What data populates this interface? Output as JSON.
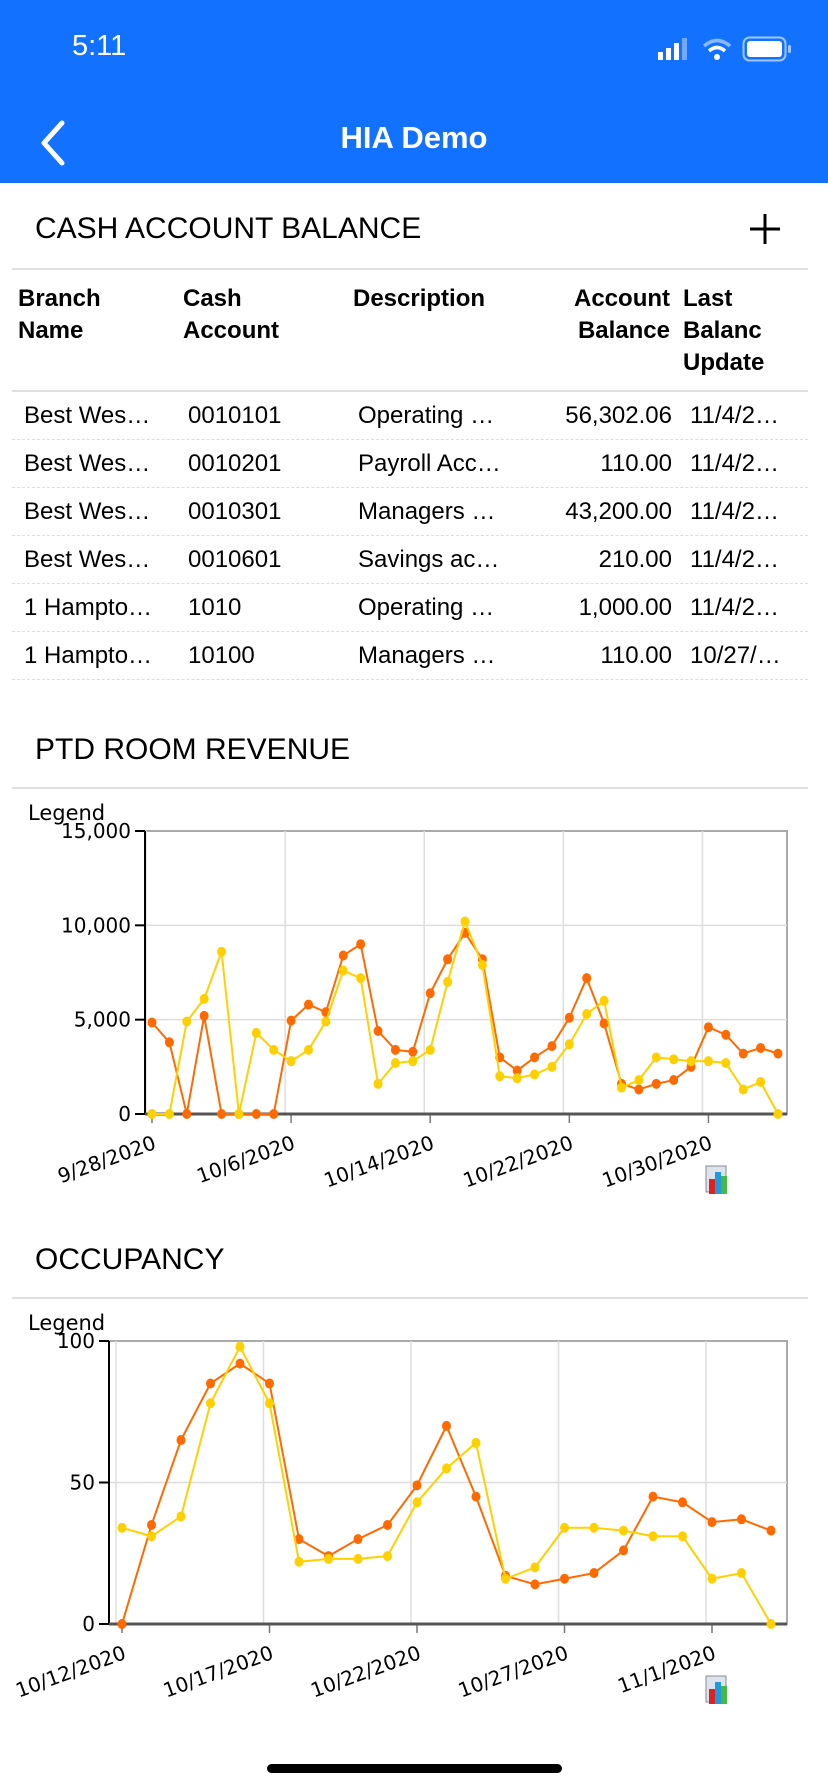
{
  "status_bar": {
    "time": "5:11"
  },
  "nav": {
    "title": "HIA Demo"
  },
  "cash": {
    "title": "CASH ACCOUNT BALANCE",
    "headers": [
      [
        "Branch",
        "Name"
      ],
      [
        "Cash",
        "Account"
      ],
      [
        "Description"
      ],
      [
        "Account",
        "Balance"
      ],
      [
        "Last",
        "Balanc",
        "Update"
      ]
    ],
    "rows": [
      [
        "Best Wes…",
        "0010101",
        "Operating …",
        "56,302.06",
        "11/4/2…"
      ],
      [
        "Best Wes…",
        "0010201",
        "Payroll Acc…",
        "110.00",
        "11/4/2…"
      ],
      [
        "Best Wes…",
        "0010301",
        "Managers …",
        "43,200.00",
        "11/4/2…"
      ],
      [
        "Best Wes…",
        "0010601",
        "Savings ac…",
        "210.00",
        "11/4/2…"
      ],
      [
        "1 Hampto…",
        "1010",
        "Operating …",
        "1,000.00",
        "11/4/2…"
      ],
      [
        "1 Hampto…",
        "10100",
        "Managers …",
        "110.00",
        "10/27/…"
      ]
    ]
  },
  "chart_data": [
    {
      "type": "line",
      "title": "PTD ROOM REVENUE",
      "legend_label": "Legend",
      "ylim": [
        0,
        15000
      ],
      "yticks": [
        "0",
        "5,000",
        "10,000",
        "15,000"
      ],
      "ytick_values": [
        0,
        5000,
        10000,
        15000
      ],
      "x_start": "9/28/2020",
      "x_step_days": 1,
      "xticks": [
        "9/28/2020",
        "10/6/2020",
        "10/14/2020",
        "10/22/2020",
        "10/30/2020"
      ],
      "xtick_index": [
        0,
        8,
        16,
        24,
        32
      ],
      "series": [
        {
          "name": "series-orange",
          "color": "#ff6a00",
          "values": [
            4850,
            3800,
            0,
            5200,
            0,
            0,
            0,
            0,
            4950,
            5800,
            5400,
            8400,
            9000,
            4400,
            3400,
            3300,
            6400,
            8200,
            9600,
            8200,
            3000,
            2300,
            3000,
            3600,
            5100,
            7200,
            4800,
            1600,
            1300,
            1600,
            1800,
            2500,
            4600,
            4200,
            3200,
            3500,
            3200
          ]
        },
        {
          "name": "series-yellow",
          "color": "#ffd000",
          "values": [
            0,
            0,
            4900,
            6100,
            8600,
            0,
            4300,
            3400,
            2800,
            3400,
            4900,
            7600,
            7200,
            1600,
            2700,
            2800,
            3400,
            7000,
            10200,
            7900,
            2000,
            1900,
            2100,
            2500,
            3700,
            5300,
            6000,
            1400,
            1800,
            3000,
            2900,
            2800,
            2800,
            2700,
            1300,
            1700,
            0
          ]
        }
      ]
    },
    {
      "type": "line",
      "title": "OCCUPANCY",
      "legend_label": "Legend",
      "ylim": [
        0,
        100
      ],
      "yticks": [
        "0",
        "50",
        "100"
      ],
      "ytick_values": [
        0,
        50,
        100
      ],
      "x_start": "10/12/2020",
      "x_step_days": 1,
      "xticks": [
        "10/12/2020",
        "10/17/2020",
        "10/22/2020",
        "10/27/2020",
        "11/1/2020"
      ],
      "xtick_index": [
        0,
        5,
        10,
        15,
        20
      ],
      "series": [
        {
          "name": "series-orange",
          "color": "#ff6a00",
          "values": [
            0,
            35,
            65,
            85,
            92,
            85,
            30,
            24,
            30,
            35,
            49,
            70,
            45,
            17,
            14,
            16,
            18,
            26,
            45,
            43,
            36,
            37,
            33
          ]
        },
        {
          "name": "series-yellow",
          "color": "#ffd000",
          "values": [
            34,
            31,
            38,
            78,
            98,
            78,
            22,
            23,
            23,
            24,
            43,
            55,
            64,
            16,
            20,
            34,
            34,
            33,
            31,
            31,
            16,
            18,
            0
          ]
        }
      ]
    }
  ]
}
